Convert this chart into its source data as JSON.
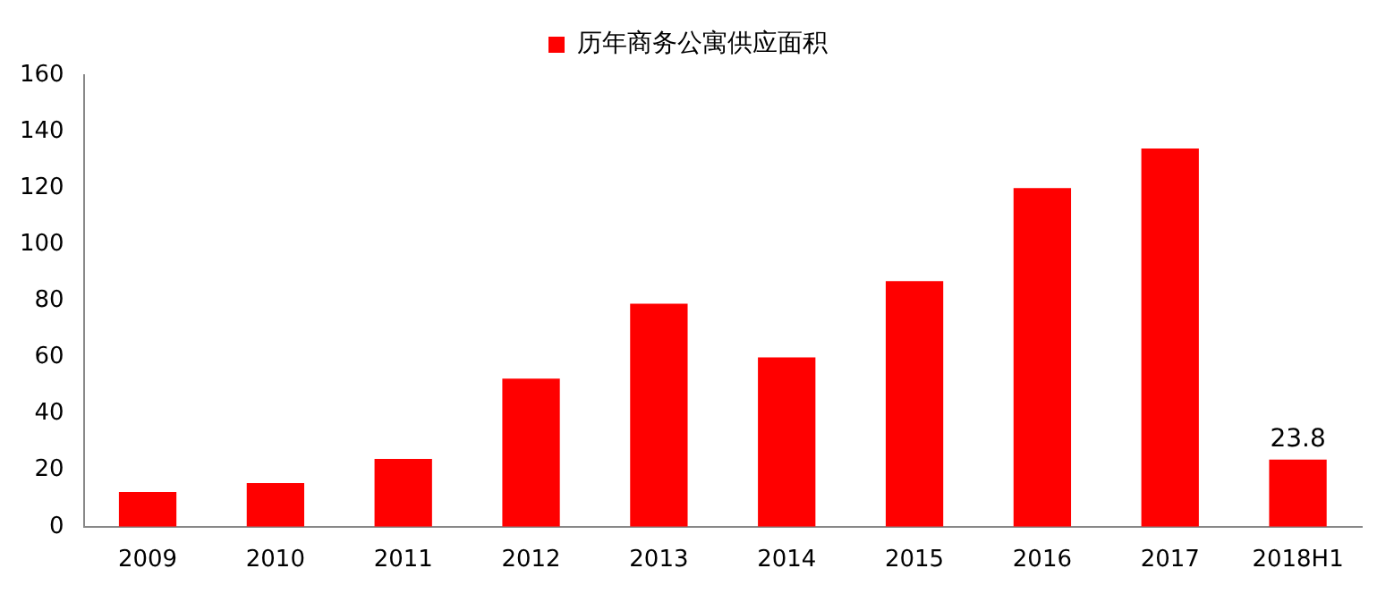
{
  "chart_data": {
    "type": "bar",
    "categories": [
      "2009",
      "2010",
      "2011",
      "2012",
      "2013",
      "2014",
      "2015",
      "2016",
      "2017",
      "2018H1"
    ],
    "series": [
      {
        "name": "历年商务公寓供应面积",
        "color": "#ff0000",
        "values": [
          12.3,
          15.5,
          24,
          52.5,
          79,
          60,
          87,
          120,
          134,
          23.8
        ],
        "value_labels": [
          null,
          null,
          null,
          null,
          null,
          null,
          null,
          null,
          null,
          "23.8"
        ]
      }
    ],
    "ylim": [
      0,
      160
    ],
    "yticks": [
      0,
      20,
      40,
      60,
      80,
      100,
      120,
      140,
      160
    ],
    "grid": false,
    "legend": "top"
  }
}
